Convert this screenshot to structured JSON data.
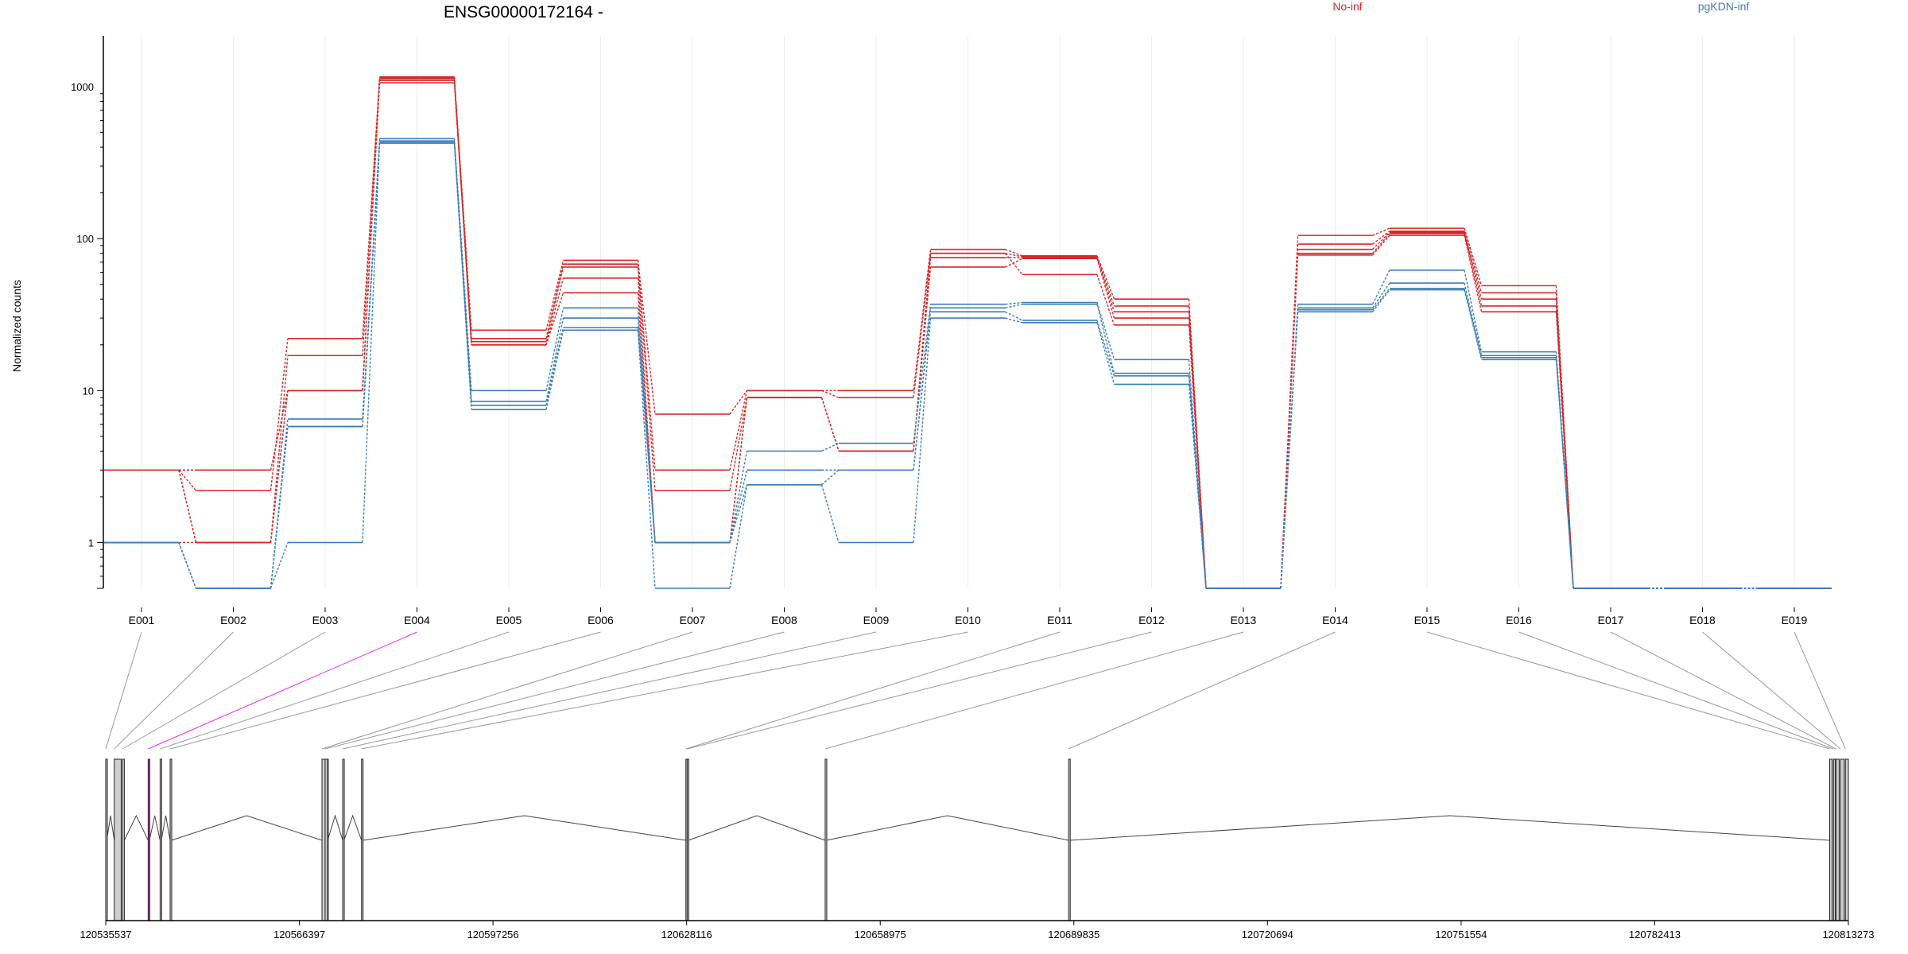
{
  "chart_data": {
    "type": "line",
    "title": "ENSG00000172164 -",
    "ylabel": "Normalized counts",
    "yscale": "log",
    "ylim": [
      0.5,
      1600
    ],
    "yticks": [
      1,
      10,
      100,
      1000
    ],
    "ytick_labels": [
      "1",
      "10",
      "100",
      "1000"
    ],
    "categories": [
      "E001",
      "E002",
      "E003",
      "E004",
      "E005",
      "E006",
      "E007",
      "E008",
      "E009",
      "E010",
      "E011",
      "E012",
      "E013",
      "E014",
      "E015",
      "E016",
      "E017",
      "E018",
      "E019"
    ],
    "legend": [
      {
        "label": "No-inf",
        "color": "#d62728"
      },
      {
        "label": "pgKDN-inf",
        "color": "#3b7fb8"
      }
    ],
    "series": [
      {
        "group": "No-inf",
        "values": [
          3,
          1,
          17,
          1160,
          25,
          72,
          7,
          10,
          10,
          85,
          77,
          40,
          0.5,
          105,
          117,
          49,
          0.5,
          0.5,
          0.5
        ]
      },
      {
        "group": "No-inf",
        "values": [
          3,
          2.2,
          22,
          1130,
          22,
          68,
          3,
          10,
          9,
          80,
          76,
          36,
          0.5,
          92,
          112,
          44,
          0.5,
          0.5,
          0.5
        ]
      },
      {
        "group": "No-inf",
        "values": [
          3,
          1,
          10,
          1100,
          21,
          65,
          2.2,
          9,
          4,
          75,
          75,
          33,
          0.5,
          85,
          110,
          40,
          0.5,
          0.5,
          0.5
        ]
      },
      {
        "group": "No-inf",
        "values": [
          3,
          3,
          10,
          1060,
          20,
          55,
          1,
          9,
          4,
          65,
          74,
          30,
          0.5,
          80,
          108,
          36,
          0.5,
          0.5,
          0.5
        ]
      },
      {
        "group": "No-inf",
        "values": [
          1,
          1,
          10,
          1140,
          20,
          44,
          1,
          9,
          4,
          80,
          58,
          27,
          0.5,
          78,
          105,
          33,
          0.5,
          0.5,
          0.5
        ]
      },
      {
        "group": "pgKDN-inf",
        "values": [
          1,
          0.5,
          5.8,
          455,
          10,
          35,
          1,
          4,
          4.5,
          37,
          38,
          16,
          0.5,
          37,
          62,
          18,
          0.5,
          0.5,
          0.5
        ]
      },
      {
        "group": "pgKDN-inf",
        "values": [
          1,
          0.5,
          6.5,
          440,
          8.5,
          30,
          1,
          3,
          3,
          35,
          37,
          13,
          0.5,
          35,
          51,
          17,
          0.5,
          0.5,
          0.5
        ]
      },
      {
        "group": "pgKDN-inf",
        "values": [
          1,
          0.5,
          5.8,
          425,
          8,
          26,
          1,
          2.4,
          3,
          33,
          29,
          12.5,
          0.5,
          34,
          47,
          16.5,
          0.5,
          0.5,
          0.5
        ]
      },
      {
        "group": "pgKDN-inf",
        "values": [
          1,
          0.5,
          1,
          430,
          7.5,
          25,
          0.5,
          2.4,
          1,
          30,
          28,
          11,
          0.5,
          33,
          46,
          16,
          0.5,
          0.5,
          0.5
        ]
      }
    ],
    "coordinate_axis": {
      "ticks": [
        120535537,
        120566397,
        120597256,
        120628116,
        120658975,
        120689835,
        120720694,
        120751554,
        120782413,
        120813273
      ],
      "tick_labels": [
        "120535537",
        "120566397",
        "120597256",
        "120628116",
        "120658975",
        "120689835",
        "120720694",
        "120751554",
        "120782413",
        "120813273"
      ]
    },
    "exon_genomic_starts": [
      120535537,
      120536900,
      120538200,
      120542300,
      120544200,
      120545800,
      120570000,
      120570500,
      120573300,
      120576300,
      120628000,
      120628200,
      120650200,
      120689000,
      120810300,
      120810900,
      120811300,
      120812000,
      120812800
    ],
    "exon_genomic_ends": [
      120535700,
      120538000,
      120538500,
      120542500,
      120544400,
      120546000,
      120571000,
      120570900,
      120573500,
      120576500,
      120628300,
      120628400,
      120650400,
      120689200,
      120810700,
      120811200,
      120811800,
      120812600,
      120813273
    ],
    "highlighted_exon": "E004",
    "highlight_color": "#ee22ee"
  }
}
